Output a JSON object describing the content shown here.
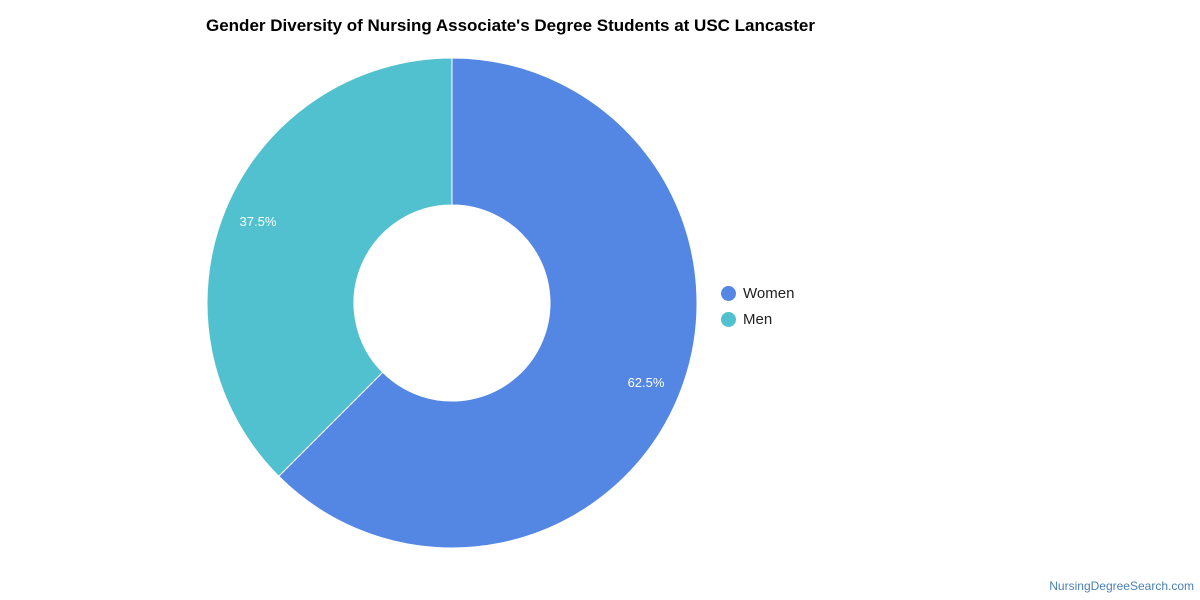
{
  "chart_data": {
    "type": "pie",
    "title": "Gender Diversity of Nursing Associate's Degree Students at USC Lancaster",
    "categories": [
      "Women",
      "Men"
    ],
    "values": [
      62.5,
      37.5
    ],
    "data_labels": [
      "62.5%",
      "37.5%"
    ],
    "colors": [
      "#5486e3",
      "#52c1cf"
    ],
    "legend_position": "right",
    "donut": true
  },
  "legend": {
    "items": [
      {
        "label": "Women",
        "color": "#5486e3"
      },
      {
        "label": "Men",
        "color": "#52c1cf"
      }
    ]
  },
  "watermark": "NursingDegreeSearch.com"
}
